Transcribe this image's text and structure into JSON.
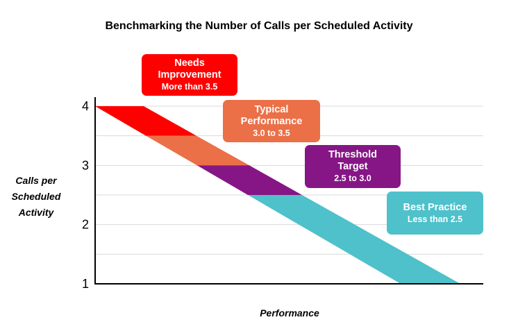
{
  "chart_data": {
    "type": "area",
    "title": "Benchmarking the Number of Calls per Scheduled Activity",
    "ylabel": "Calls per Scheduled Activity",
    "ylabel_lines": [
      "Calls per",
      "Scheduled",
      "Activity"
    ],
    "xlabel": "Performance",
    "ylim": [
      1,
      4
    ],
    "yticks": [
      1,
      2,
      3,
      4
    ],
    "grid": true,
    "bands": [
      {
        "name_lines": [
          "Needs",
          "Improvement"
        ],
        "range": "More than 3.5",
        "color": "#ff0000",
        "y_low": 3.5,
        "y_high": 4.0
      },
      {
        "name_lines": [
          "Typical",
          "Performance"
        ],
        "range": "3.0 to 3.5",
        "color": "#eb7047",
        "y_low": 3.0,
        "y_high": 3.5
      },
      {
        "name_lines": [
          "Threshold",
          "Target"
        ],
        "range": "2.5 to 3.0",
        "color": "#861685",
        "y_low": 2.5,
        "y_high": 3.0
      },
      {
        "name_lines": [
          "Best Practice"
        ],
        "range": "Less than 2.5",
        "color": "#4ec1cb",
        "y_low": 1.0,
        "y_high": 2.5
      }
    ]
  }
}
